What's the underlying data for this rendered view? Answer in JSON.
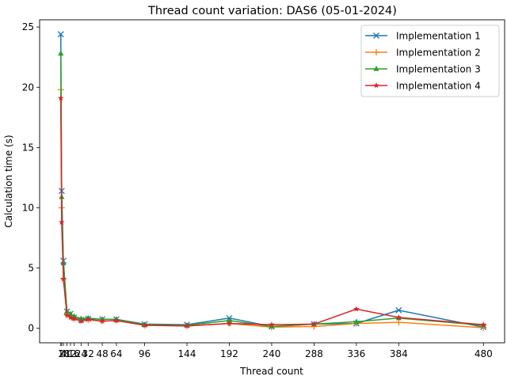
{
  "chart_data": {
    "type": "line",
    "title": "Thread count variation: DAS6 (05-01-2024)",
    "xlabel": "Thread count",
    "ylabel": "Calculation time (s)",
    "x": [
      1,
      2,
      4,
      8,
      12,
      16,
      24,
      32,
      48,
      64,
      96,
      144,
      192,
      240,
      288,
      336,
      384,
      480
    ],
    "xticks": [
      "1",
      "2",
      "4",
      "8",
      "12",
      "16",
      "24",
      "32",
      "48",
      "64",
      "96",
      "144",
      "192",
      "240",
      "288",
      "336",
      "384",
      "480"
    ],
    "yticks": [
      0,
      5,
      10,
      15,
      20,
      25
    ],
    "xlim": [
      -23,
      504
    ],
    "ylim": [
      -1.2,
      25.6
    ],
    "legend_position": "top-right",
    "series": [
      {
        "name": "Implementation 1",
        "color": "#1f77b4",
        "marker": "x",
        "values": [
          24.4,
          11.4,
          5.6,
          1.4,
          1.2,
          0.9,
          0.7,
          0.8,
          0.75,
          0.75,
          0.35,
          0.3,
          0.85,
          0.15,
          0.35,
          0.4,
          1.5,
          0.1
        ]
      },
      {
        "name": "Implementation 2",
        "color": "#ff7f0e",
        "marker": "plus",
        "values": [
          19.8,
          10.0,
          4.1,
          1.1,
          1.0,
          0.8,
          0.65,
          0.7,
          0.6,
          0.65,
          0.25,
          0.2,
          0.4,
          0.1,
          0.15,
          0.4,
          0.5,
          0.05
        ]
      },
      {
        "name": "Implementation 3",
        "color": "#2ca02c",
        "marker": "triangle",
        "values": [
          22.8,
          10.9,
          5.4,
          1.4,
          1.2,
          1.0,
          0.8,
          0.85,
          0.75,
          0.75,
          0.3,
          0.25,
          0.65,
          0.15,
          0.35,
          0.55,
          0.85,
          0.25
        ]
      },
      {
        "name": "Implementation 4",
        "color": "#d62728",
        "marker": "star",
        "values": [
          19.1,
          8.8,
          4.1,
          1.1,
          0.9,
          0.8,
          0.6,
          0.75,
          0.6,
          0.65,
          0.25,
          0.2,
          0.4,
          0.3,
          0.35,
          1.6,
          0.9,
          0.3
        ]
      }
    ]
  }
}
